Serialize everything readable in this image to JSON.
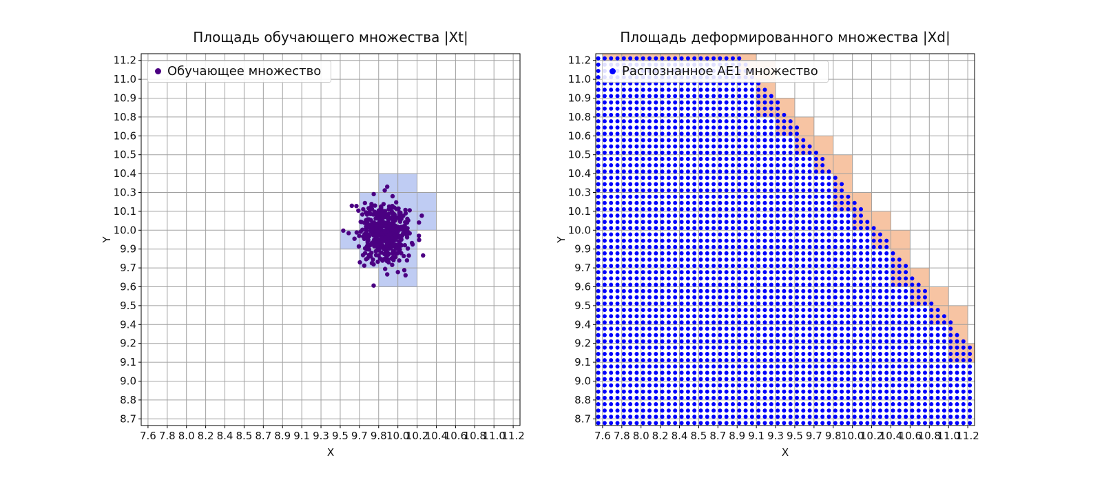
{
  "figure": {
    "background": "#ffffff"
  },
  "chart_data": [
    {
      "type": "scatter",
      "title": "Площадь обучающего множества |Xt|",
      "xlabel": "X",
      "ylabel": "Y",
      "x_range": [
        7.6,
        11.2
      ],
      "y_range": [
        8.7,
        11.2
      ],
      "grid": true,
      "legend_position": "upper left",
      "x_tick_labels": [
        "7.6",
        "7.8",
        "8.0",
        "8.2",
        "8.4",
        "8.5",
        "8.7",
        "8.9",
        "9.1",
        "9.3",
        "9.5",
        "9.7",
        "9.8",
        "10.0",
        "10.2",
        "10.4",
        "10.6",
        "10.8",
        "11.0",
        "11.2"
      ],
      "y_tick_labels_bottom_to_top": [
        "8.7",
        "8.8",
        "9.0",
        "9.1",
        "9.2",
        "9.4",
        "9.5",
        "9.6",
        "9.7",
        "9.9",
        "10.0",
        "10.1",
        "10.3",
        "10.4",
        "10.5",
        "10.6",
        "10.8",
        "10.9",
        "11.0",
        "11.2"
      ],
      "legend": [
        {
          "label": "Обучающее множество",
          "color": "#4b0082"
        }
      ],
      "series": [
        {
          "name": "Обучающее множество",
          "marker": "dot",
          "color": "#4b0082",
          "n_points": 480,
          "cluster_center": [
            9.94,
            10.0
          ],
          "cluster_std": [
            0.13,
            0.105
          ]
        }
      ],
      "highlighted_cells": {
        "color": "#bfccf3",
        "cells_tick_index": [
          [
            12,
            12
          ],
          [
            13,
            12
          ],
          [
            11,
            11
          ],
          [
            12,
            11
          ],
          [
            13,
            11
          ],
          [
            14,
            11
          ],
          [
            11,
            10
          ],
          [
            12,
            10
          ],
          [
            13,
            10
          ],
          [
            14,
            10
          ],
          [
            10,
            9
          ],
          [
            11,
            9
          ],
          [
            12,
            9
          ],
          [
            13,
            9
          ],
          [
            11,
            8
          ],
          [
            12,
            8
          ],
          [
            13,
            8
          ],
          [
            12,
            7
          ],
          [
            13,
            7
          ]
        ]
      }
    },
    {
      "type": "scatter",
      "title": "Площадь деформированного множества |Xd|",
      "xlabel": "X",
      "ylabel": "Y",
      "x_range": [
        7.6,
        11.2
      ],
      "y_range": [
        8.7,
        11.2
      ],
      "grid": true,
      "legend_position": "upper left",
      "x_tick_labels": [
        "7.6",
        "7.8",
        "8.0",
        "8.2",
        "8.4",
        "8.5",
        "8.7",
        "8.9",
        "9.1",
        "9.3",
        "9.5",
        "9.7",
        "9.8",
        "10.0",
        "10.2",
        "10.4",
        "10.6",
        "10.8",
        "11.0",
        "11.2"
      ],
      "y_tick_labels_bottom_to_top": [
        "8.7",
        "8.8",
        "9.0",
        "9.1",
        "9.2",
        "9.4",
        "9.5",
        "9.6",
        "9.7",
        "9.9",
        "10.0",
        "10.1",
        "10.3",
        "10.4",
        "10.5",
        "10.6",
        "10.8",
        "10.9",
        "11.0",
        "11.2"
      ],
      "legend": [
        {
          "label": "Распознанное АЕ1 множество",
          "color": "#0000ff"
        }
      ],
      "series": [
        {
          "name": "Распознанное АЕ1 множество",
          "marker": "dot",
          "color": "#0000ff",
          "fill_pattern": "regular dot grid filling region below boundary line",
          "dot_grid_step_cells": 0.333,
          "boundary_line": {
            "point": [
              8.96,
              11.24
            ],
            "slope": -0.9
          }
        }
      ],
      "boundary_cells": {
        "color": "#f7c4a3",
        "rule": "grid cells crossed by the boundary line"
      }
    }
  ]
}
